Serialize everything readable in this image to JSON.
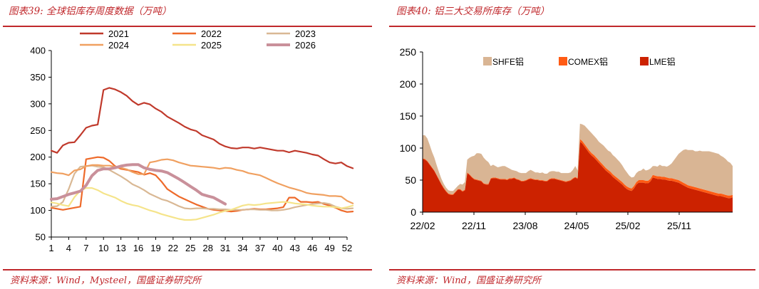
{
  "colors": {
    "accent": "#c0282c",
    "s2021": "#c0392b",
    "s2022": "#ee6a2a",
    "s2023": "#d9b894",
    "s2024": "#f0a060",
    "s2025": "#f5e48a",
    "s2026": "#c9909a",
    "shfe": "#d9b594",
    "comex": "#ff5b14",
    "lme": "#cc2200"
  },
  "left": {
    "title": "图表39:  全球铝库存周度数据（万吨）",
    "source": "资料来源：Wind，Mysteel，国盛证券研究所"
  },
  "right": {
    "title": "图表40:  铝三大交易所库存（万吨）",
    "source": "资料来源：Wind，国盛证券研究所"
  },
  "chart_data": [
    {
      "type": "line",
      "xlabel": "",
      "ylabel": "",
      "ylim": [
        50,
        400
      ],
      "xlim": [
        1,
        52
      ],
      "yticks": [
        50,
        100,
        150,
        200,
        250,
        300,
        350,
        400
      ],
      "xticks": [
        1,
        4,
        7,
        10,
        13,
        16,
        19,
        22,
        25,
        28,
        31,
        34,
        37,
        40,
        43,
        46,
        49,
        52
      ],
      "grid": false,
      "legend": "top",
      "series": [
        {
          "name": "2021",
          "color_key": "s2021",
          "values": [
            212,
            208,
            222,
            227,
            228,
            241,
            255,
            259,
            261,
            326,
            330,
            327,
            322,
            315,
            305,
            298,
            302,
            299,
            291,
            285,
            276,
            270,
            264,
            257,
            252,
            249,
            241,
            237,
            233,
            225,
            220,
            217,
            216,
            218,
            218,
            216,
            218,
            216,
            214,
            212,
            212,
            209,
            212,
            210,
            208,
            205,
            203,
            196,
            190,
            188,
            190,
            183,
            179
          ]
        },
        {
          "name": "2022",
          "color_key": "s2022",
          "values": [
            105,
            103,
            101,
            103,
            105,
            107,
            196,
            198,
            200,
            199,
            193,
            183,
            178,
            176,
            174,
            172,
            167,
            170,
            166,
            154,
            140,
            133,
            126,
            121,
            116,
            111,
            107,
            103,
            101,
            100,
            99,
            98,
            99,
            101,
            102,
            103,
            102,
            102,
            103,
            104,
            106,
            124,
            124,
            116,
            116,
            115,
            116,
            112,
            109,
            105,
            100,
            97,
            98
          ]
        },
        {
          "name": "2023",
          "color_key": "s2023",
          "values": [
            107,
            108,
            116,
            140,
            169,
            182,
            183,
            184,
            182,
            181,
            176,
            170,
            164,
            157,
            149,
            144,
            138,
            131,
            126,
            121,
            118,
            113,
            108,
            104,
            103,
            104,
            104,
            103,
            103,
            102,
            102,
            101,
            101,
            101,
            102,
            102,
            101,
            101,
            100,
            100,
            101,
            103,
            106,
            108,
            110,
            112,
            113,
            114,
            112,
            107,
            104,
            103,
            104
          ]
        },
        {
          "name": "2024",
          "color_key": "s2024",
          "values": [
            172,
            170,
            169,
            166,
            175,
            177,
            183,
            185,
            185,
            184,
            184,
            182,
            180,
            177,
            172,
            168,
            168,
            190,
            192,
            195,
            196,
            194,
            190,
            187,
            184,
            183,
            182,
            181,
            180,
            178,
            180,
            179,
            176,
            174,
            170,
            168,
            166,
            161,
            156,
            151,
            147,
            143,
            140,
            137,
            133,
            131,
            130,
            129,
            127,
            127,
            126,
            118,
            113
          ]
        },
        {
          "name": "2025",
          "color_key": "s2025",
          "values": [
            115,
            113,
            110,
            108,
            125,
            137,
            142,
            142,
            138,
            132,
            128,
            124,
            118,
            113,
            110,
            108,
            104,
            100,
            97,
            93,
            90,
            87,
            84,
            82,
            82,
            83,
            86,
            89,
            92,
            96,
            99,
            101,
            105,
            109,
            111,
            110,
            111,
            113,
            114,
            115,
            116,
            115,
            113,
            112,
            111,
            109,
            108,
            107,
            107,
            106,
            104,
            106,
            109
          ]
        },
        {
          "name": "2026",
          "color_key": "s2026",
          "values": [
            121,
            122,
            126,
            130,
            133,
            136,
            147,
            165,
            175,
            178,
            178,
            180,
            183,
            185,
            186,
            186,
            180,
            177,
            175,
            174,
            171,
            165,
            159,
            152,
            145,
            138,
            130,
            127,
            124,
            118,
            112
          ]
        }
      ]
    },
    {
      "type": "area",
      "stacked": true,
      "ylim": [
        0,
        250
      ],
      "yticks": [
        0,
        50,
        100,
        150,
        200,
        250
      ],
      "xticks": [
        "22/02",
        "22/11",
        "23/08",
        "24/05",
        "25/02",
        "25/11"
      ],
      "legend": "top",
      "series": [
        {
          "name": "LME铝",
          "color_key": "lme",
          "values": [
            83,
            82,
            79,
            74,
            69,
            64,
            57,
            50,
            43,
            37,
            32,
            28,
            27,
            27,
            31,
            35,
            35,
            32,
            34,
            61,
            58,
            54,
            51,
            50,
            49,
            48,
            44,
            43,
            43,
            52,
            53,
            53,
            52,
            51,
            51,
            51,
            50,
            52,
            52,
            53,
            51,
            50,
            48,
            48,
            49,
            51,
            52,
            51,
            50,
            50,
            49,
            49,
            48,
            48,
            51,
            52,
            52,
            51,
            50,
            49,
            48,
            47,
            48,
            49,
            52,
            54,
            52,
            110,
            107,
            102,
            97,
            92,
            88,
            85,
            81,
            77,
            73,
            69,
            65,
            62,
            59,
            55,
            52,
            49,
            46,
            43,
            39,
            36,
            34,
            33,
            37,
            43,
            46,
            46,
            46,
            45,
            45,
            48,
            54,
            53,
            52,
            52,
            51,
            51,
            50,
            49,
            49,
            48,
            47,
            46,
            44,
            42,
            40,
            38,
            37,
            36,
            35,
            34,
            33,
            32,
            31,
            30,
            29,
            28,
            27,
            26,
            25,
            25,
            24,
            23,
            22,
            22,
            23
          ]
        },
        {
          "name": "COMEX铝",
          "color_key": "comex",
          "values": [
            1,
            1,
            1,
            1,
            1,
            1,
            1,
            1,
            1,
            1,
            1,
            1,
            1,
            1,
            1,
            1,
            1,
            1,
            1,
            1,
            1,
            1,
            1,
            1,
            1,
            1,
            1,
            1,
            1,
            1,
            1,
            1,
            1,
            1,
            1,
            1,
            1,
            1,
            1,
            1,
            1,
            1,
            1,
            1,
            1,
            1,
            1,
            1,
            1,
            1,
            1,
            1,
            1,
            1,
            1,
            1,
            1,
            1,
            1,
            1,
            1,
            1,
            1,
            1,
            1,
            1,
            1,
            4,
            4,
            4,
            4,
            4,
            4,
            4,
            4,
            4,
            4,
            4,
            4,
            4,
            4,
            4,
            4,
            4,
            4,
            4,
            4,
            4,
            4,
            4,
            4,
            4,
            4,
            4,
            4,
            4,
            4,
            4,
            4,
            4,
            4,
            4,
            4,
            4,
            4,
            4,
            4,
            4,
            4,
            4,
            4,
            4,
            4,
            4,
            4,
            4,
            4,
            4,
            4,
            4,
            4,
            4,
            4,
            4,
            4,
            4,
            4,
            4,
            4,
            4,
            4,
            4,
            4
          ]
        },
        {
          "name": "SHFE铝",
          "color_key": "shfe",
          "values": [
            36,
            37,
            35,
            30,
            24,
            20,
            15,
            11,
            8,
            6,
            5,
            5,
            5,
            5,
            5,
            5,
            8,
            10,
            12,
            20,
            26,
            32,
            36,
            41,
            42,
            42,
            40,
            37,
            34,
            19,
            20,
            18,
            17,
            19,
            20,
            20,
            19,
            15,
            13,
            11,
            12,
            11,
            12,
            12,
            11,
            12,
            13,
            12,
            11,
            11,
            11,
            12,
            11,
            11,
            11,
            11,
            11,
            11,
            12,
            11,
            12,
            13,
            12,
            12,
            13,
            17,
            12,
            24,
            26,
            29,
            30,
            31,
            31,
            30,
            30,
            29,
            30,
            31,
            31,
            30,
            31,
            30,
            30,
            29,
            28,
            26,
            24,
            22,
            19,
            17,
            14,
            14,
            14,
            15,
            18,
            16,
            17,
            16,
            14,
            15,
            15,
            18,
            17,
            17,
            17,
            20,
            23,
            29,
            35,
            41,
            46,
            51,
            54,
            55,
            56,
            57,
            56,
            57,
            59,
            59,
            60,
            61,
            62,
            62,
            62,
            62,
            62,
            59,
            58,
            56,
            53,
            51,
            45
          ]
        }
      ]
    }
  ]
}
